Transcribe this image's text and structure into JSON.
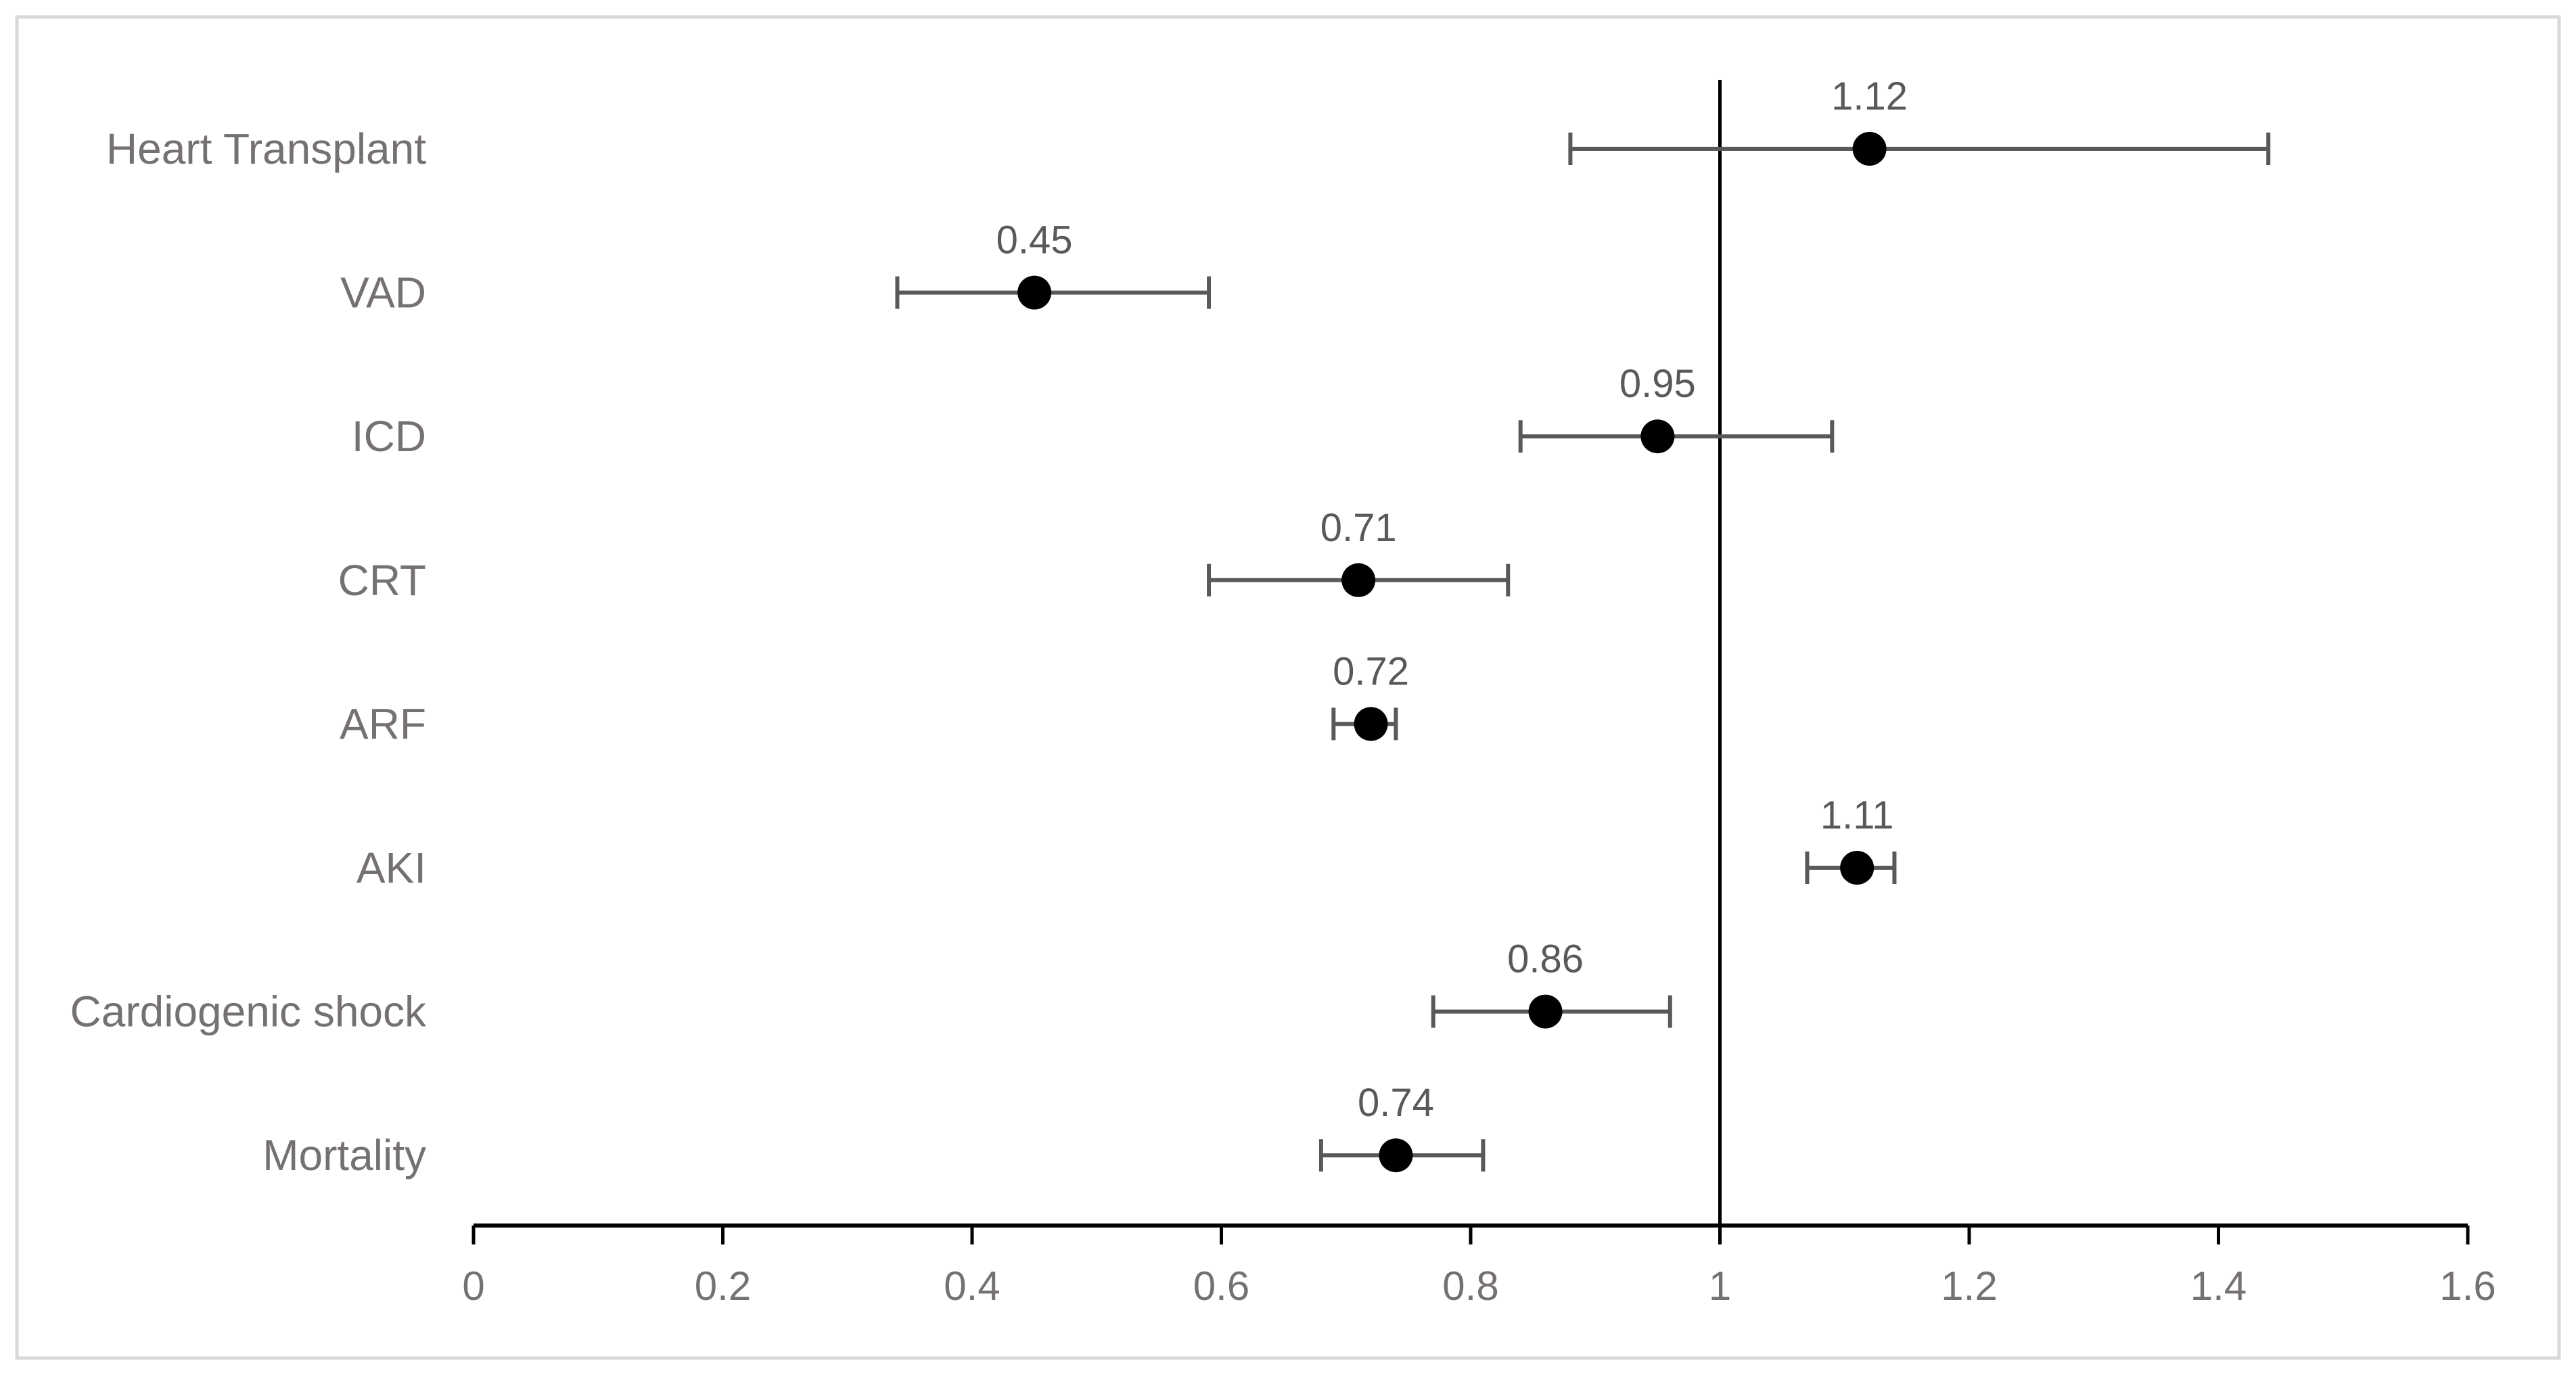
{
  "chart_data": {
    "type": "scatter",
    "subtype": "forest-plot",
    "title": "",
    "xlabel": "",
    "ylabel": "",
    "xlim": [
      0,
      1.6
    ],
    "x_ticks": [
      0,
      0.2,
      0.4,
      0.6,
      0.8,
      1,
      1.2,
      1.4,
      1.6
    ],
    "x_tick_labels": [
      "0",
      "0.2",
      "0.4",
      "0.6",
      "0.8",
      "1",
      "1.2",
      "1.4",
      "1.6"
    ],
    "reference_line_x": 1,
    "grid": false,
    "legend": "none",
    "colors": {
      "point": "#000000",
      "error_bar": "#595959",
      "category_text": "#767171",
      "frame": "#d9d9d9"
    },
    "rows": [
      {
        "label": "Heart Transplant",
        "estimate": 1.12,
        "estimate_label": "1.12",
        "ci_low": 0.88,
        "ci_high": 1.44
      },
      {
        "label": "VAD",
        "estimate": 0.45,
        "estimate_label": "0.45",
        "ci_low": 0.34,
        "ci_high": 0.59
      },
      {
        "label": "ICD",
        "estimate": 0.95,
        "estimate_label": "0.95",
        "ci_low": 0.84,
        "ci_high": 1.09
      },
      {
        "label": "CRT",
        "estimate": 0.71,
        "estimate_label": "0.71",
        "ci_low": 0.59,
        "ci_high": 0.83
      },
      {
        "label": "ARF",
        "estimate": 0.72,
        "estimate_label": "0.72",
        "ci_low": 0.69,
        "ci_high": 0.74
      },
      {
        "label": "AKI",
        "estimate": 1.11,
        "estimate_label": "1.11",
        "ci_low": 1.07,
        "ci_high": 1.14
      },
      {
        "label": "Cardiogenic shock",
        "estimate": 0.86,
        "estimate_label": "0.86",
        "ci_low": 0.77,
        "ci_high": 0.96
      },
      {
        "label": "Mortality",
        "estimate": 0.74,
        "estimate_label": "0.74",
        "ci_low": 0.68,
        "ci_high": 0.81
      }
    ]
  }
}
